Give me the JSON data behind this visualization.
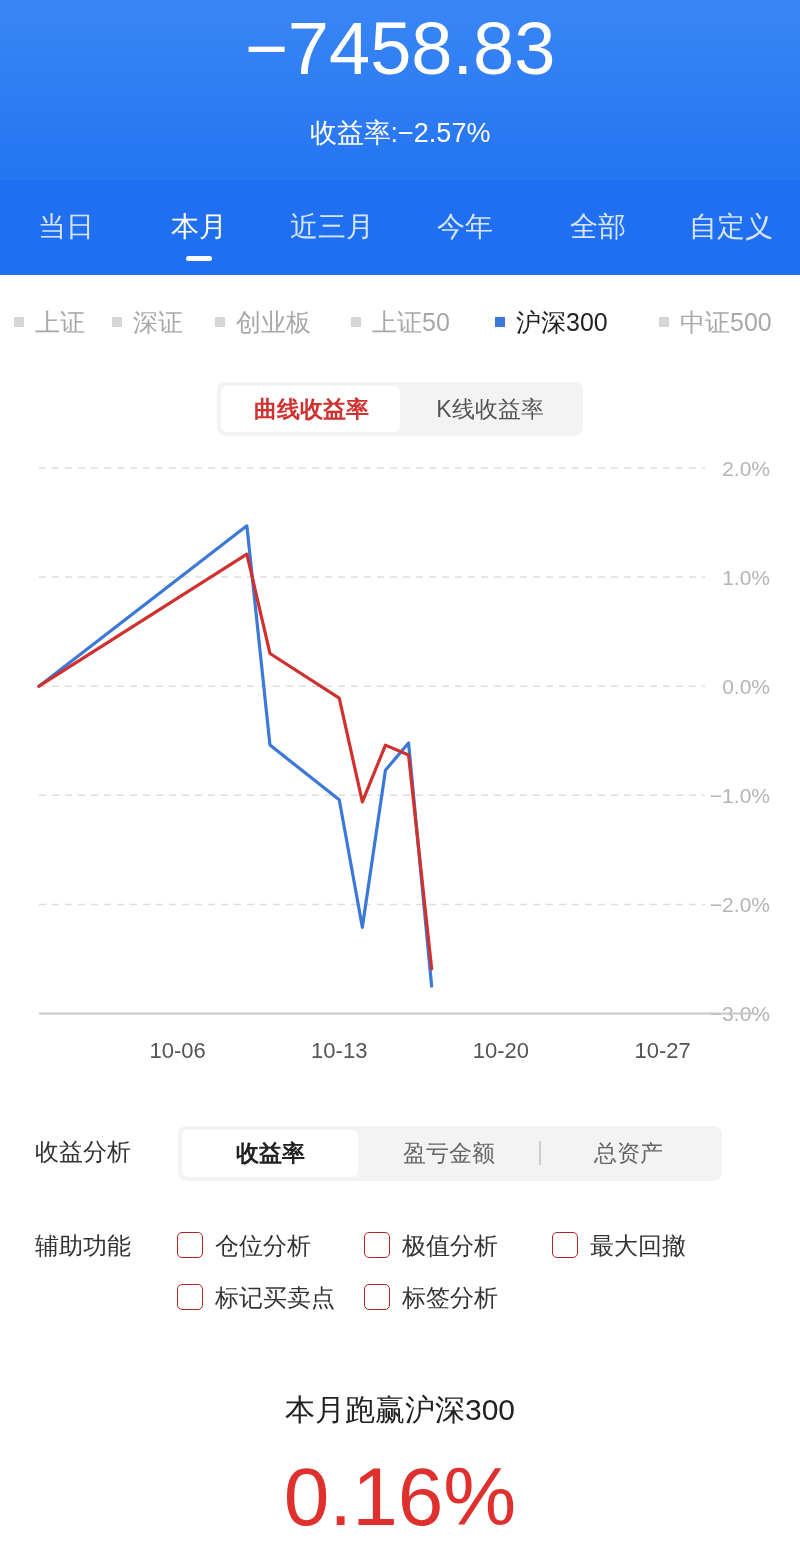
{
  "chart_data": [
    {
      "type": "other",
      "title": "−7458.83",
      "subtitle": "收益率:−2.57%",
      "annotations": [
        "当日",
        "本月",
        "近三月",
        "今年",
        "全部",
        "自定义"
      ]
    },
    {
      "type": "line",
      "x": [
        "--09-30",
        "--10-09",
        "--10-10",
        "--10-13",
        "--10-14",
        "--10-15",
        "--10-16",
        "--10-17"
      ],
      "series": [
        {
          "name": "沪深300",
          "color": "#3b78d8",
          "values": [
            0,
            1.47,
            -0.54,
            -1.04,
            -2.21,
            -0.77,
            -0.52,
            -2.75
          ]
        },
        {
          "color": "#d0312f",
          "values": [
            0,
            1.21,
            0.3,
            -0.11,
            -1.06,
            -0.54,
            -0.63,
            -2.59
          ]
        }
      ],
      "annotations": [
        "上证",
        "深证",
        "创业板",
        "上证50",
        "中证500",
        "曲线收益率",
        "K线收益率"
      ],
      "xlim": [
        "--09-30",
        "--10-31"
      ],
      "ylim": [
        -3,
        2
      ],
      "xticks": [
        {
          "value": "--10-06",
          "label": "10-06"
        },
        {
          "value": "--10-13",
          "label": "10-13"
        },
        {
          "value": "--10-20",
          "label": "10-20"
        },
        {
          "value": "--10-27",
          "label": "10-27"
        }
      ],
      "yticks": [
        {
          "value": -3,
          "label": "−3.0%"
        },
        {
          "value": -2,
          "label": "−2.0%"
        },
        {
          "value": -1,
          "label": "−1.0%"
        },
        {
          "value": 0,
          "label": "0.0%"
        },
        {
          "value": 1,
          "label": "1.0%"
        },
        {
          "value": 2,
          "label": "2.0%"
        }
      ],
      "grid": "y",
      "legend": "top"
    },
    {
      "type": "other",
      "title": "本月跑赢沪深300",
      "annotations": [
        "收益分析",
        "收益率",
        "盈亏金额",
        "总资产",
        "辅助功能",
        "仓位分析",
        "极值分析",
        "最大回撤",
        "标记买卖点",
        "标签分析",
        "0.16%"
      ]
    }
  ]
}
